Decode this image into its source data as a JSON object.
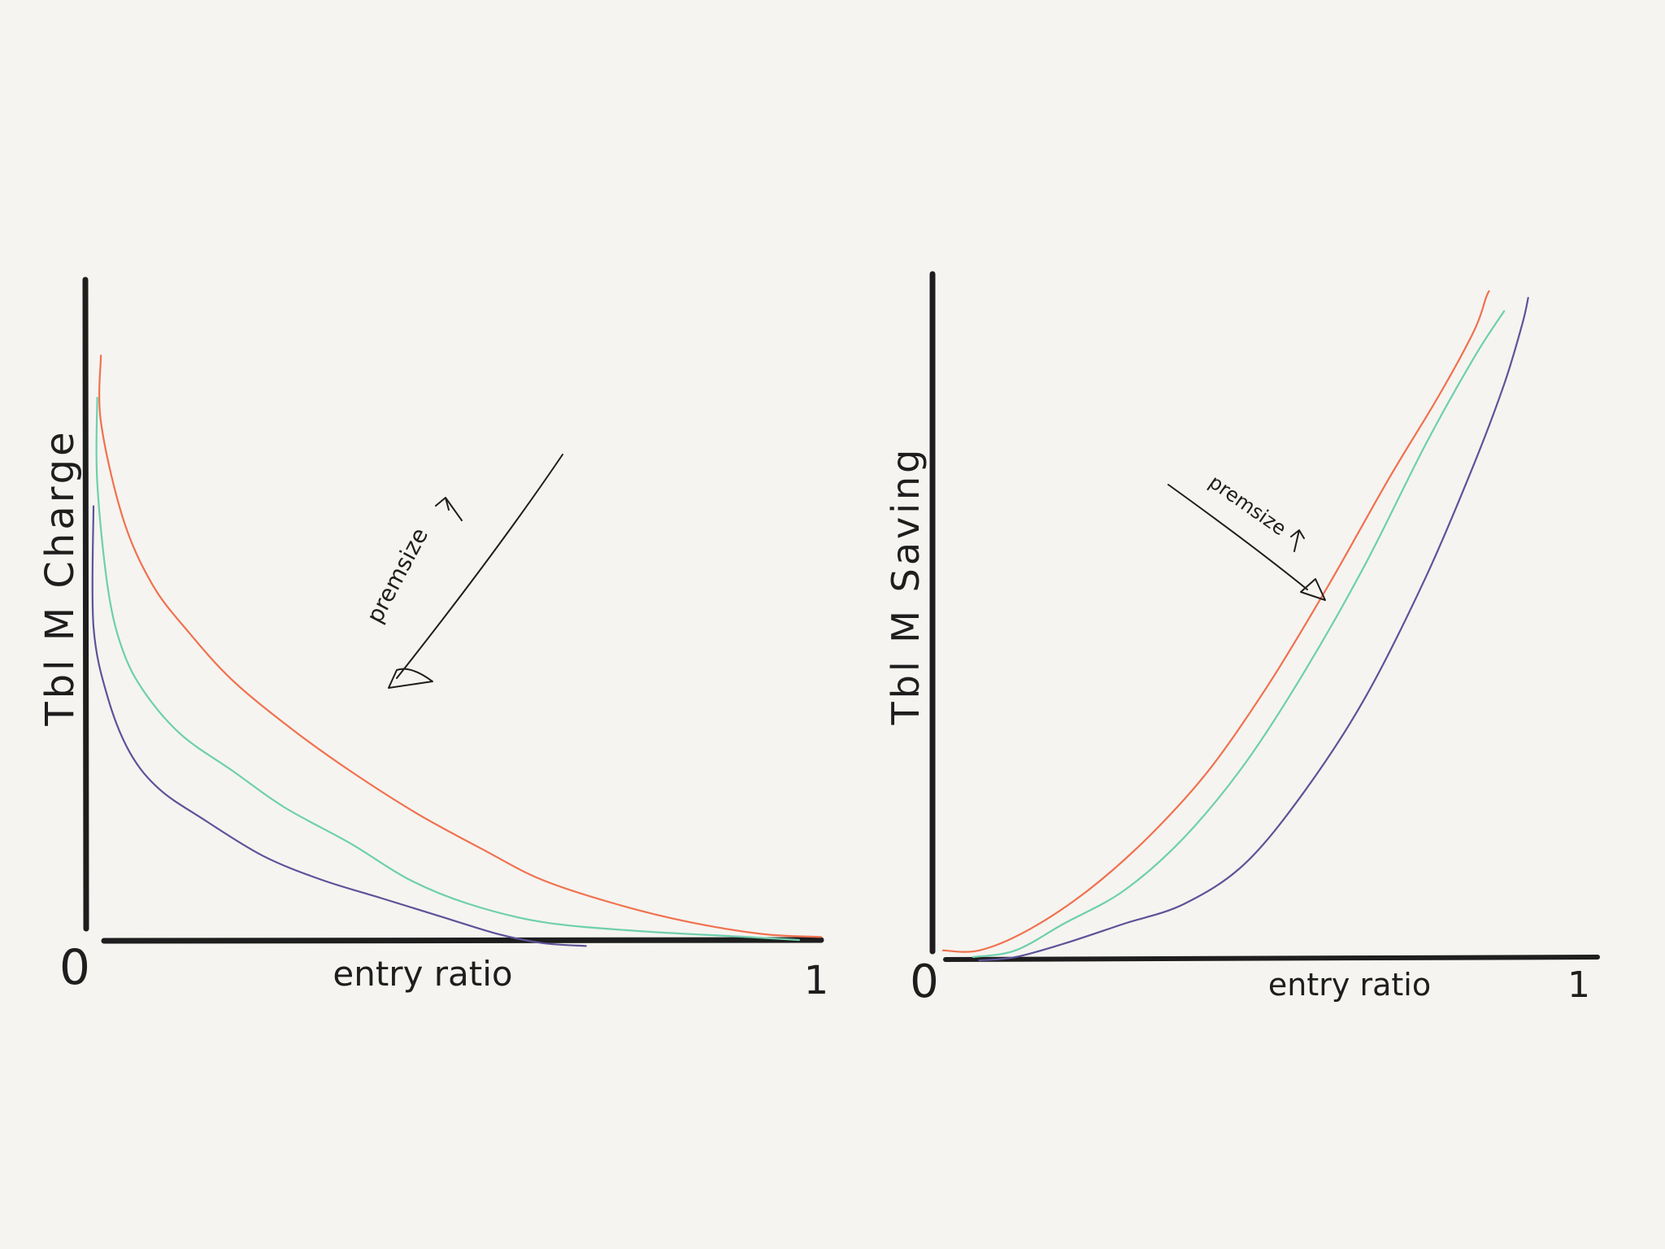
{
  "chart_data": [
    {
      "type": "line",
      "title": "",
      "xlabel": "entry ratio",
      "ylabel": "Tbl M Charge",
      "xlim": [
        0,
        1
      ],
      "ylim": [
        0,
        1
      ],
      "x_tick_labels": [
        "0",
        "1"
      ],
      "grid": false,
      "annotation": "premsize",
      "annotation_arrow_direction": "down-left",
      "series": [
        {
          "color": "#f0714f",
          "points": [
            [
              0.02,
              0.97
            ],
            [
              0.02,
              0.86
            ],
            [
              0.05,
              0.7
            ],
            [
              0.09,
              0.59
            ],
            [
              0.14,
              0.51
            ],
            [
              0.2,
              0.43
            ],
            [
              0.28,
              0.35
            ],
            [
              0.36,
              0.28
            ],
            [
              0.45,
              0.21
            ],
            [
              0.54,
              0.15
            ],
            [
              0.62,
              0.1
            ],
            [
              0.72,
              0.06
            ],
            [
              0.82,
              0.03
            ],
            [
              0.92,
              0.01
            ],
            [
              1.0,
              0.005
            ]
          ]
        },
        {
          "color": "#6ecfae",
          "points": [
            [
              0.015,
              0.9
            ],
            [
              0.015,
              0.76
            ],
            [
              0.03,
              0.58
            ],
            [
              0.05,
              0.48
            ],
            [
              0.08,
              0.41
            ],
            [
              0.13,
              0.34
            ],
            [
              0.2,
              0.28
            ],
            [
              0.27,
              0.22
            ],
            [
              0.36,
              0.16
            ],
            [
              0.44,
              0.1
            ],
            [
              0.52,
              0.06
            ],
            [
              0.62,
              0.03
            ],
            [
              0.75,
              0.015
            ],
            [
              0.9,
              0.005
            ],
            [
              0.97,
              0.0
            ]
          ]
        },
        {
          "color": "#5d5399",
          "points": [
            [
              0.01,
              0.72
            ],
            [
              0.01,
              0.52
            ],
            [
              0.03,
              0.4
            ],
            [
              0.06,
              0.31
            ],
            [
              0.1,
              0.25
            ],
            [
              0.16,
              0.2
            ],
            [
              0.24,
              0.14
            ],
            [
              0.32,
              0.1
            ],
            [
              0.4,
              0.07
            ],
            [
              0.48,
              0.04
            ],
            [
              0.56,
              0.01
            ],
            [
              0.62,
              -0.005
            ],
            [
              0.68,
              -0.01
            ]
          ]
        }
      ]
    },
    {
      "type": "line",
      "title": "",
      "xlabel": "entry ratio",
      "ylabel": "Tbl M Saving",
      "xlim": [
        0,
        1
      ],
      "ylim": [
        0,
        1
      ],
      "x_tick_labels": [
        "0",
        "1"
      ],
      "grid": false,
      "annotation": "premsize",
      "annotation_arrow_direction": "down-right",
      "series": [
        {
          "color": "#f0714f",
          "points": [
            [
              0.0,
              0.01
            ],
            [
              0.06,
              0.01
            ],
            [
              0.14,
              0.04
            ],
            [
              0.24,
              0.1
            ],
            [
              0.34,
              0.18
            ],
            [
              0.44,
              0.28
            ],
            [
              0.54,
              0.41
            ],
            [
              0.64,
              0.56
            ],
            [
              0.74,
              0.72
            ],
            [
              0.82,
              0.84
            ],
            [
              0.88,
              0.94
            ],
            [
              0.9,
              0.99
            ],
            [
              0.905,
              1.0
            ]
          ]
        },
        {
          "color": "#6ecfae",
          "points": [
            [
              0.05,
              0.0
            ],
            [
              0.12,
              0.01
            ],
            [
              0.2,
              0.05
            ],
            [
              0.3,
              0.1
            ],
            [
              0.4,
              0.18
            ],
            [
              0.5,
              0.29
            ],
            [
              0.6,
              0.43
            ],
            [
              0.7,
              0.59
            ],
            [
              0.8,
              0.77
            ],
            [
              0.88,
              0.9
            ],
            [
              0.93,
              0.97
            ]
          ]
        },
        {
          "color": "#5d5399",
          "points": [
            [
              0.06,
              -0.005
            ],
            [
              0.12,
              0.0
            ],
            [
              0.2,
              0.02
            ],
            [
              0.3,
              0.05
            ],
            [
              0.4,
              0.08
            ],
            [
              0.5,
              0.14
            ],
            [
              0.6,
              0.25
            ],
            [
              0.7,
              0.39
            ],
            [
              0.8,
              0.57
            ],
            [
              0.88,
              0.74
            ],
            [
              0.93,
              0.86
            ],
            [
              0.96,
              0.95
            ],
            [
              0.97,
              0.99
            ]
          ]
        }
      ]
    }
  ]
}
